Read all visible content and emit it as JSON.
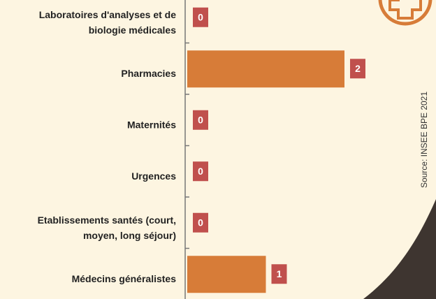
{
  "chart_data": {
    "type": "barh",
    "categories": [
      "Laboratoires d'analyses et de\nbiologie médicales",
      "Pharmacies",
      "Maternités",
      "Urgences",
      "Etablissements santés (court,\nmoyen, long séjour)",
      "Médecins généralistes"
    ],
    "values": [
      0,
      2,
      0,
      0,
      0,
      1
    ],
    "color": "#d77c38",
    "label_color": "#c0504d",
    "xlim": [
      0,
      2
    ],
    "source": "Source: INSEE BPE 2021"
  }
}
